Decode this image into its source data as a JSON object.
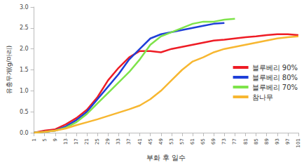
{
  "chart_data": {
    "type": "line",
    "x_label": "부화 후 일수",
    "y_label": "유충무게(g/마리)",
    "x": [
      1,
      5,
      9,
      13,
      17,
      21,
      25,
      29,
      33,
      37,
      41,
      45,
      49,
      53,
      57,
      61,
      65,
      69,
      73,
      77,
      81,
      85,
      89,
      93,
      97,
      101
    ],
    "series": [
      {
        "name": "블루베리 90%",
        "color": "#ee1c25",
        "values": [
          0,
          0.05,
          0.08,
          0.2,
          0.35,
          0.55,
          0.85,
          1.25,
          1.55,
          1.8,
          1.95,
          1.95,
          1.92,
          2.0,
          2.05,
          2.1,
          2.15,
          2.2,
          2.22,
          2.25,
          2.28,
          2.3,
          2.33,
          2.35,
          2.35,
          2.33
        ]
      },
      {
        "name": "블루베리 80%",
        "color": "#1f3fd8",
        "values": [
          0,
          0.02,
          0.05,
          0.15,
          0.3,
          0.5,
          0.8,
          1.1,
          1.4,
          1.75,
          2.0,
          2.25,
          2.35,
          2.4,
          2.45,
          2.5,
          2.55,
          2.6,
          2.62,
          null,
          null,
          null,
          null,
          null,
          null,
          null
        ]
      },
      {
        "name": "블루베리 70%",
        "color": "#7ee34a",
        "values": [
          0,
          0.02,
          0.05,
          0.12,
          0.25,
          0.45,
          0.7,
          0.95,
          1.2,
          1.45,
          1.75,
          2.1,
          2.3,
          2.4,
          2.5,
          2.6,
          2.65,
          2.65,
          2.7,
          2.72,
          null,
          null,
          null,
          null,
          null,
          null
        ]
      },
      {
        "name": "참나무",
        "color": "#f7b731",
        "values": [
          0,
          0.02,
          0.05,
          0.1,
          0.18,
          0.25,
          0.32,
          0.4,
          0.48,
          0.56,
          0.65,
          0.8,
          1.0,
          1.25,
          1.5,
          1.7,
          1.8,
          1.92,
          2.0,
          2.05,
          2.1,
          2.15,
          2.2,
          2.25,
          2.28,
          2.3
        ]
      }
    ],
    "xlim": [
      1,
      101
    ],
    "xticks": [
      1,
      5,
      9,
      13,
      17,
      21,
      25,
      29,
      33,
      37,
      41,
      45,
      49,
      53,
      57,
      61,
      65,
      69,
      73,
      77,
      81,
      85,
      89,
      93,
      97,
      101
    ],
    "ylim": [
      0,
      3
    ],
    "yticks": [
      {
        "value": 0,
        "label": "0.0"
      },
      {
        "value": 0.5,
        "label": "0.5"
      },
      {
        "value": 1,
        "label": "1.0"
      },
      {
        "value": 1.5,
        "label": "1.5"
      },
      {
        "value": 2,
        "label": "2.0"
      },
      {
        "value": 2.5,
        "label": "2.5"
      },
      {
        "value": 3,
        "label": "3.0"
      }
    ],
    "grid": false,
    "legend": "right"
  }
}
